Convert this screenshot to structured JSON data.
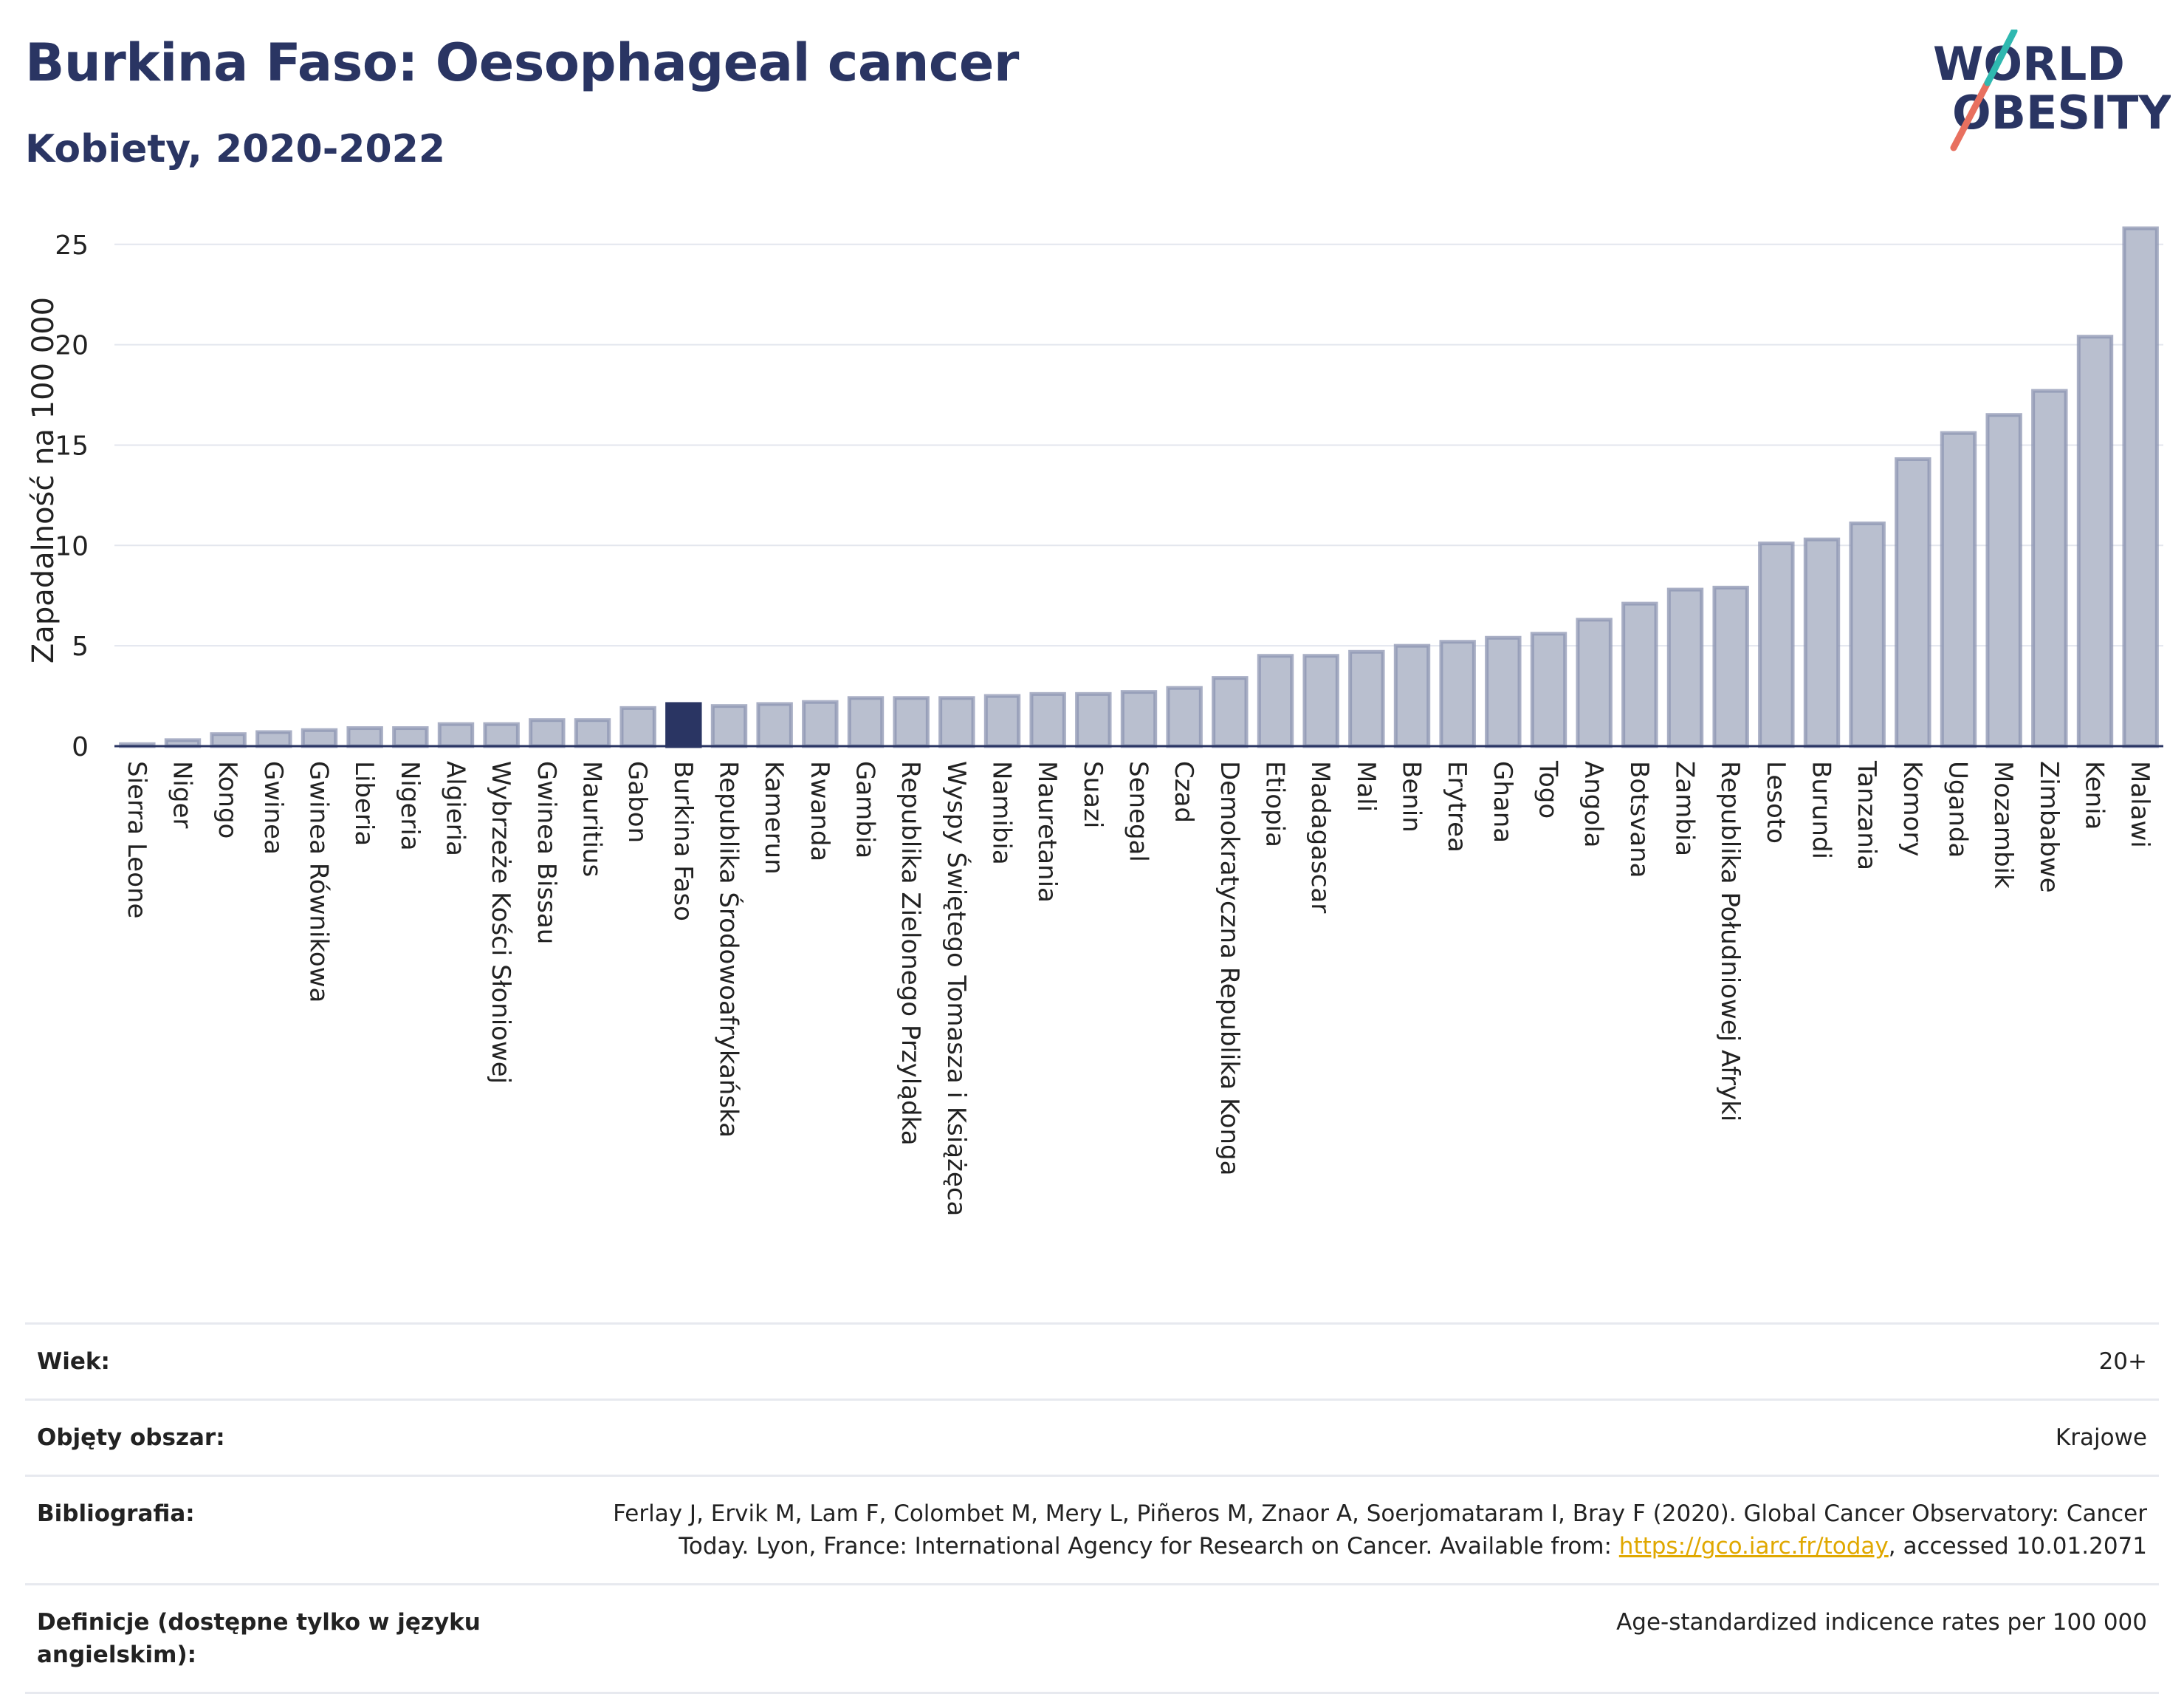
{
  "title": "Burkina Faso: Oesophageal cancer",
  "subtitle": "Kobiety, 2020-2022",
  "logo": {
    "line1": "WORLD",
    "line2": "OBESITY"
  },
  "colors": {
    "bar": "#b9bfcf",
    "bar_stroke": "#8c94b2",
    "highlight": "#2a3563",
    "grid": "#e3e6ee",
    "title": "#2a3563",
    "link": "#e0a800"
  },
  "chart_data": {
    "type": "bar",
    "ylabel": "Zapadalność na 100 000",
    "ylim": [
      0,
      26.5
    ],
    "yticks": [
      0,
      5,
      10,
      15,
      20,
      25
    ],
    "highlight": "Burkina Faso",
    "categories": [
      "Sierra Leone",
      "Niger",
      "Kongo",
      "Gwinea",
      "Gwinea Równikowa",
      "Liberia",
      "Nigeria",
      "Algieria",
      "Wybrzeże Kości Słoniowej",
      "Gwinea Bissau",
      "Mauritius",
      "Gabon",
      "Burkina Faso",
      "Republika Środowoafrykańska",
      "Kamerun",
      "Rwanda",
      "Gambia",
      "Republika Zielonego Przylądka",
      "Wyspy Świętego Tomasza i Książęca",
      "Namibia",
      "Mauretania",
      "Suazi",
      "Senegal",
      "Czad",
      "Demokratyczna Republika Konga",
      "Etiopia",
      "Madagascar",
      "Mali",
      "Benin",
      "Erytrea",
      "Ghana",
      "Togo",
      "Angola",
      "Botsvana",
      "Zambia",
      "Republika Południowej Afryki",
      "Lesoto",
      "Burundi",
      "Tanzania",
      "Komory",
      "Uganda",
      "Mozambik",
      "Zimbabwe",
      "Kenia",
      "Malawi"
    ],
    "values": [
      0.1,
      0.3,
      0.6,
      0.7,
      0.8,
      0.9,
      0.9,
      1.1,
      1.1,
      1.3,
      1.3,
      1.9,
      2.1,
      2.0,
      2.1,
      2.2,
      2.4,
      2.4,
      2.4,
      2.5,
      2.6,
      2.6,
      2.7,
      2.9,
      3.4,
      4.5,
      4.5,
      4.7,
      5.0,
      5.2,
      5.4,
      5.6,
      6.3,
      7.1,
      7.8,
      7.9,
      10.1,
      10.3,
      11.1,
      14.3,
      15.6,
      16.5,
      17.7,
      20.4,
      25.8
    ]
  },
  "info": [
    {
      "label": "Wiek:",
      "value": "20+"
    },
    {
      "label": "Objęty obszar:",
      "value": "Krajowe"
    },
    {
      "label": "Bibliografia:",
      "value_line1": "Ferlay J, Ervik M, Lam F, Colombet M, Mery L, Piñeros M, Znaor A, Soerjomataram I, Bray F (2020). Global Cancer Observatory: Cancer",
      "value_line2_pre": "Today. Lyon, France: International Agency for Research on Cancer. Available from: ",
      "link": "https://gco.iarc.fr/today",
      "value_line2_post": ", accessed 10.01.2071"
    },
    {
      "label": "Definicje (dostępne tylko w języku angielskim):",
      "value": "Age-standardized indicence rates per 100 000"
    }
  ]
}
